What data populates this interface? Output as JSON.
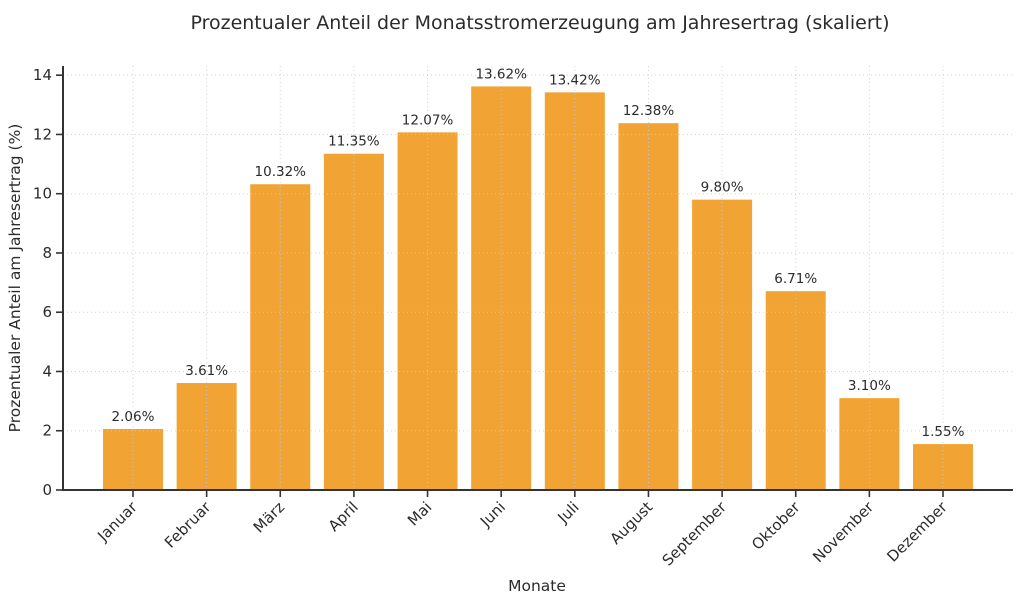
{
  "chart_data": {
    "type": "bar",
    "title": "Prozentualer Anteil der Monatsstromerzeugung am Jahresertrag (skaliert)",
    "xlabel": "Monate",
    "ylabel": "Prozentualer Anteil am Jahresertrag (%)",
    "categories": [
      "Januar",
      "Februar",
      "März",
      "April",
      "Mai",
      "Juni",
      "Juli",
      "August",
      "September",
      "Oktober",
      "November",
      "Dezember"
    ],
    "values": [
      2.06,
      3.61,
      10.32,
      11.35,
      12.07,
      13.62,
      13.42,
      12.38,
      9.8,
      6.71,
      3.1,
      1.55
    ],
    "bar_labels": [
      "2.06%",
      "3.61%",
      "10.32%",
      "11.35%",
      "12.07%",
      "13.62%",
      "13.42%",
      "12.38%",
      "9.80%",
      "6.71%",
      "3.10%",
      "1.55%"
    ],
    "yticks": [
      0,
      2,
      4,
      6,
      8,
      10,
      12,
      14
    ],
    "ytick_labels": [
      "0",
      "2",
      "4",
      "6",
      "8",
      "10",
      "12",
      "14"
    ],
    "ylim": [
      0,
      14.31
    ],
    "grid": "dotted-both-axes",
    "legend": "none",
    "colors": {
      "bar": "#F1A434",
      "grid": "#cccccc",
      "axis": "#333333",
      "text": "#2b2b2b",
      "background": "#ffffff"
    }
  }
}
